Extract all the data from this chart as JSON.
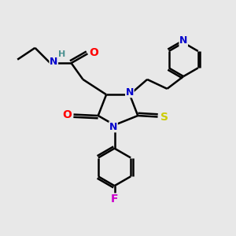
{
  "bg_color": "#e8e8e8",
  "bond_color": "#000000",
  "N_color": "#0000cc",
  "O_color": "#ff0000",
  "S_color": "#cccc00",
  "F_color": "#cc00cc",
  "H_color": "#4a9090",
  "line_width": 1.8,
  "font_size": 10,
  "xlim": [
    0,
    10
  ],
  "ylim": [
    0,
    10
  ]
}
